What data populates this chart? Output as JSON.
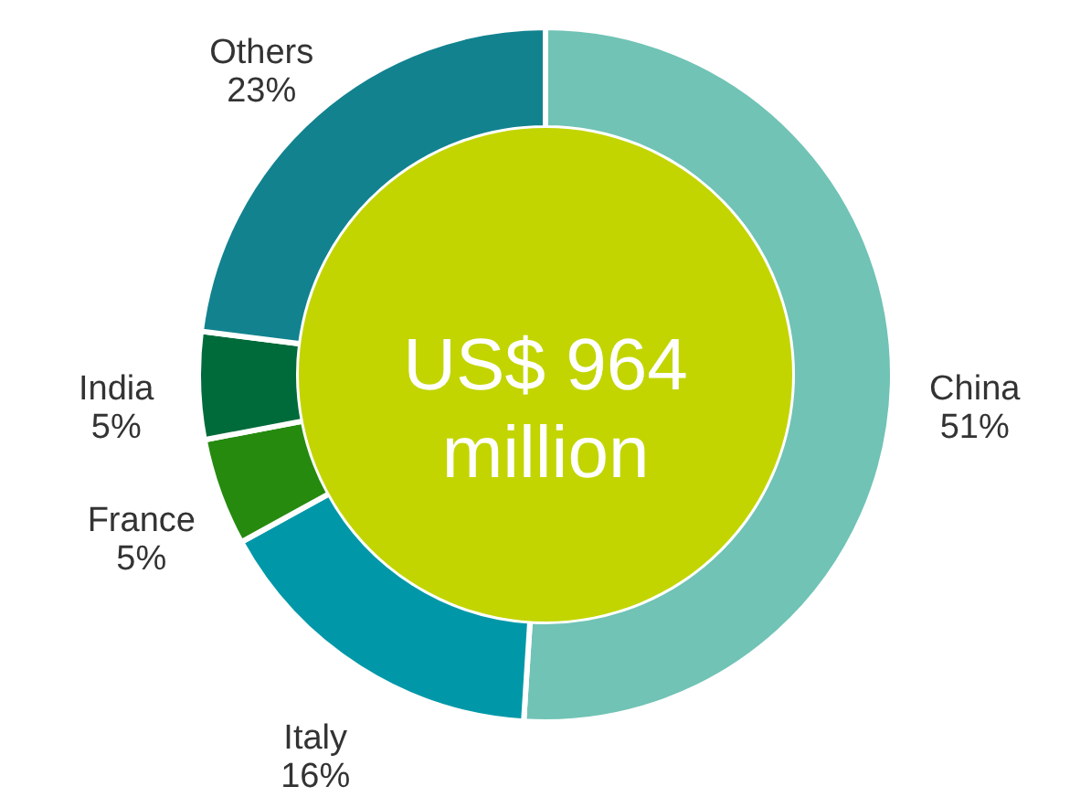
{
  "chart_data": {
    "type": "donut",
    "categories": [
      "China",
      "Italy",
      "France",
      "India",
      "Others"
    ],
    "values": [
      51,
      16,
      5,
      5,
      23
    ],
    "colors": [
      "#70c3b5",
      "#0098a8",
      "#268a0f",
      "#006b3a",
      "#12828f"
    ],
    "value_labels": [
      "51%",
      "16%",
      "5%",
      "5%",
      "23%"
    ],
    "annotations": [
      "US$ 964 million"
    ]
  }
}
